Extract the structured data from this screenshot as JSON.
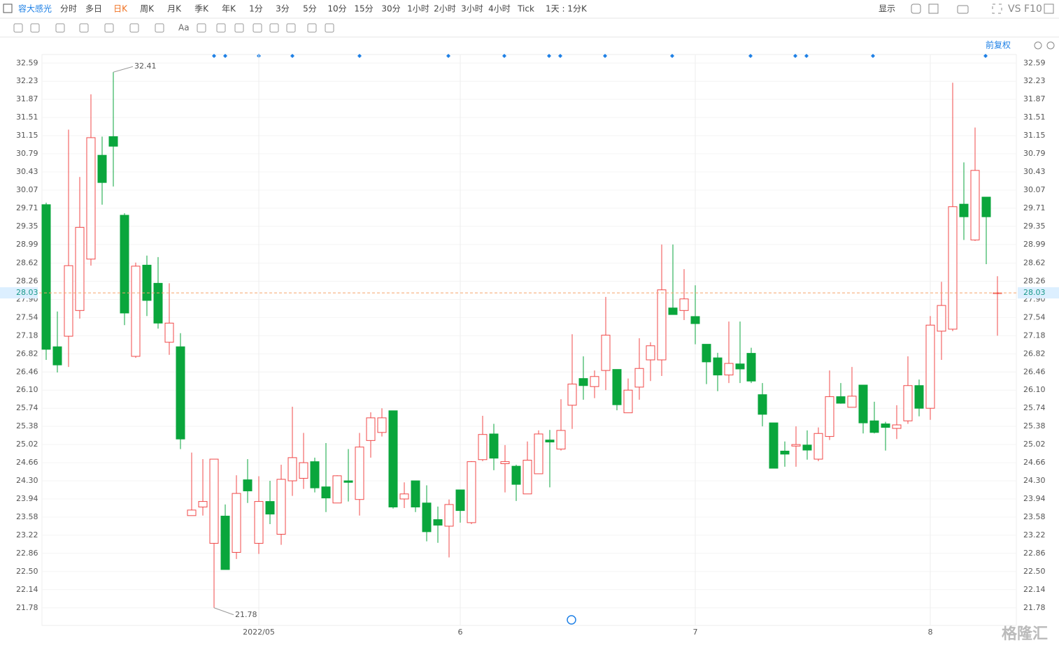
{
  "toolbar": {
    "stock": "容大感光",
    "periods": [
      "分时",
      "多日",
      "日K",
      "周K",
      "月K",
      "季K",
      "年K",
      "1分",
      "3分",
      "5分",
      "10分",
      "15分",
      "30分",
      "1小时",
      "2小时",
      "3小时",
      "4小时",
      "Tick"
    ],
    "range": "1天 : 1分K",
    "display": "显示",
    "vs": "VS",
    "f10": "F10",
    "font_tool": "Aa"
  },
  "adjust": "前复权",
  "watermark": "格隆汇",
  "chart_data": {
    "type": "candlestick",
    "categories": [
      null,
      null,
      null,
      null,
      null,
      null,
      null,
      null,
      null,
      null,
      null,
      null,
      null,
      null,
      null,
      null,
      null,
      null,
      null,
      "2022/05",
      null,
      null,
      null,
      null,
      null,
      null,
      null,
      null,
      null,
      null,
      null,
      null,
      null,
      null,
      null,
      null,
      null,
      "6",
      null,
      null,
      null,
      null,
      null,
      null,
      null,
      null,
      null,
      null,
      null,
      null,
      null,
      null,
      null,
      null,
      null,
      null,
      null,
      null,
      "7",
      null,
      null,
      null,
      null,
      null,
      null,
      null,
      null,
      null,
      null,
      null,
      null,
      null,
      null,
      null,
      null,
      null,
      null,
      null,
      null,
      "8",
      null,
      null,
      null,
      null,
      null,
      null
    ],
    "open": [
      29.78,
      26.96,
      27.17,
      27.68,
      28.7,
      30.76,
      31.13,
      29.57,
      26.77,
      28.58,
      28.22,
      27.05,
      26.96,
      23.61,
      23.78,
      23.06,
      23.6,
      22.88,
      24.32,
      23.06,
      23.89,
      23.24,
      24.3,
      24.35,
      24.68,
      24.18,
      23.86,
      24.3,
      23.93,
      25.1,
      25.26,
      25.69,
      23.94,
      24.3,
      23.86,
      23.53,
      23.4,
      24.12,
      23.47,
      24.72,
      25.23,
      24.64,
      24.59,
      24.04,
      24.44,
      25.11,
      24.93,
      25.8,
      26.33,
      26.17,
      26.49,
      26.51,
      25.65,
      26.16,
      26.7,
      26.7,
      27.73,
      27.68,
      27.56,
      27.01,
      26.74,
      26.4,
      26.62,
      26.83,
      26.01,
      25.45,
      24.89,
      24.99,
      25.01,
      24.73,
      25.18,
      25.97,
      25.76,
      26.2,
      25.49,
      25.43,
      25.34,
      25.49,
      26.19,
      25.74,
      27.27,
      27.31,
      29.79,
      29.08,
      29.93,
      28.02
    ],
    "high": [
      29.82,
      27.66,
      31.27,
      30.33,
      31.97,
      31.13,
      32.41,
      29.61,
      28.63,
      28.77,
      28.74,
      28.22,
      27.23,
      24.86,
      24.73,
      24.73,
      23.83,
      24.41,
      24.73,
      24.39,
      24.3,
      24.62,
      25.77,
      25.25,
      24.76,
      25.05,
      24.41,
      24.93,
      25.25,
      25.66,
      25.74,
      25.69,
      24.27,
      24.3,
      24.21,
      23.79,
      23.93,
      24.12,
      24.69,
      25.59,
      25.43,
      25.01,
      24.62,
      25.08,
      25.3,
      25.31,
      25.92,
      27.21,
      26.77,
      26.49,
      27.95,
      26.51,
      26.33,
      27.13,
      27.05,
      28.99,
      28.99,
      28.5,
      28.18,
      27.01,
      26.84,
      27.46,
      27.46,
      26.94,
      26.24,
      25.45,
      25.08,
      25.38,
      25.3,
      25.36,
      26.49,
      26.24,
      26.56,
      26.2,
      25.87,
      25.47,
      25.8,
      26.77,
      26.31,
      27.57,
      28.25,
      32.2,
      30.62,
      31.31,
      29.93,
      28.36
    ],
    "low": [
      26.7,
      26.45,
      26.56,
      27.52,
      28.57,
      29.78,
      30.14,
      27.39,
      26.74,
      27.57,
      27.32,
      26.8,
      24.93,
      23.61,
      23.61,
      21.78,
      22.54,
      22.75,
      23.86,
      22.85,
      23.44,
      23.03,
      24.0,
      24.14,
      24.07,
      23.68,
      23.86,
      23.89,
      23.61,
      24.76,
      25.18,
      23.75,
      23.76,
      23.68,
      23.1,
      23.07,
      22.78,
      23.47,
      23.44,
      24.69,
      24.51,
      24.07,
      23.9,
      24.04,
      24.44,
      24.17,
      24.9,
      25.33,
      25.91,
      25.94,
      26.1,
      25.7,
      25.65,
      25.91,
      26.28,
      26.38,
      27.6,
      27.49,
      27.01,
      26.22,
      26.08,
      26.24,
      26.24,
      26.24,
      25.38,
      24.55,
      24.58,
      24.58,
      24.72,
      24.69,
      25.11,
      25.83,
      25.76,
      25.24,
      25.24,
      24.9,
      25.13,
      25.43,
      25.58,
      25.51,
      26.7,
      27.27,
      29.08,
      29.06,
      28.6,
      27.18
    ],
    "close": [
      26.91,
      26.6,
      28.57,
      29.33,
      31.11,
      30.22,
      30.94,
      27.63,
      28.56,
      27.88,
      27.43,
      27.43,
      25.13,
      23.72,
      23.89,
      24.73,
      22.54,
      24.05,
      24.1,
      23.89,
      23.64,
      24.33,
      24.76,
      24.66,
      24.16,
      23.96,
      24.4,
      24.27,
      24.97,
      25.55,
      25.55,
      23.78,
      24.04,
      23.78,
      23.29,
      23.42,
      23.83,
      23.71,
      24.68,
      25.22,
      24.75,
      24.68,
      24.23,
      24.71,
      25.23,
      25.07,
      25.3,
      26.22,
      26.19,
      26.37,
      27.19,
      25.81,
      26.1,
      26.53,
      26.98,
      28.09,
      27.6,
      27.91,
      27.42,
      26.66,
      26.4,
      26.63,
      26.52,
      26.28,
      25.62,
      24.55,
      24.83,
      25.02,
      24.91,
      25.24,
      25.97,
      25.84,
      25.98,
      25.45,
      25.26,
      25.36,
      25.41,
      26.19,
      25.74,
      27.39,
      27.78,
      29.74,
      29.54,
      30.46,
      29.54,
      28.03
    ],
    "up_color": "#f04848",
    "down_color": "#0aa63c",
    "max_high": 32.41,
    "min_low": 21.78,
    "last": 28.03,
    "last_color": "#f5a46a",
    "ylim": [
      21.43,
      32.76
    ],
    "yticks": [
      32.59,
      32.23,
      31.87,
      31.51,
      31.15,
      30.79,
      30.43,
      30.07,
      29.71,
      29.35,
      28.99,
      28.62,
      28.26,
      {
        "value": 27.9,
        "label": "27.90"
      },
      27.54,
      27.18,
      26.82,
      26.46,
      {
        "value": 26.1,
        "label": "26.10"
      },
      25.74,
      25.38,
      25.02,
      24.66,
      {
        "value": 24.3,
        "label": "24.30"
      },
      23.94,
      23.58,
      23.22,
      22.86,
      {
        "value": 22.5,
        "label": "22.50"
      },
      22.14,
      21.78
    ],
    "grid": true
  }
}
